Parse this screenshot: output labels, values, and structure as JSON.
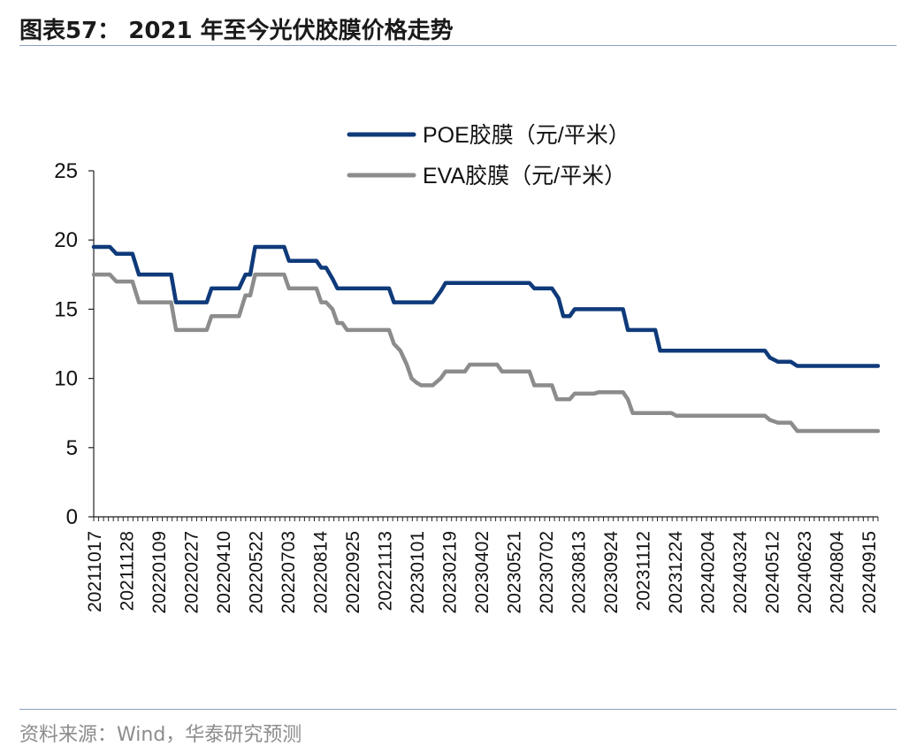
{
  "header": {
    "title": "图表57： 2021 年至今光伏胶膜价格走势"
  },
  "footer": {
    "source": "资料来源：Wind，华泰研究预测"
  },
  "chart_data": {
    "type": "line",
    "title": "",
    "xlabel": "",
    "ylabel": "",
    "ylim": [
      0,
      25
    ],
    "yticks": [
      0,
      5,
      10,
      15,
      20,
      25
    ],
    "x_tick_labels": [
      "20211017",
      "20211128",
      "20220109",
      "20220227",
      "20220410",
      "20220522",
      "20220703",
      "20220814",
      "20220925",
      "20221113",
      "20230101",
      "20230219",
      "20230402",
      "20230521",
      "20230702",
      "20230813",
      "20230924",
      "20231112",
      "20231224",
      "20240204",
      "20240324",
      "20240512",
      "20240623",
      "20240804",
      "20240915"
    ],
    "x_range": [
      0,
      24.3
    ],
    "legend_position": "top-right",
    "series": [
      {
        "name": "POE胶膜（元/平米）",
        "color": "#0f3a7a",
        "points": [
          [
            0,
            19.5
          ],
          [
            0.5,
            19.5
          ],
          [
            0.7,
            19.0
          ],
          [
            1.2,
            19.0
          ],
          [
            1.4,
            17.5
          ],
          [
            2.4,
            17.5
          ],
          [
            2.55,
            15.5
          ],
          [
            3.5,
            15.5
          ],
          [
            3.65,
            16.5
          ],
          [
            4.5,
            16.5
          ],
          [
            4.7,
            17.5
          ],
          [
            4.85,
            17.5
          ],
          [
            5.0,
            19.5
          ],
          [
            5.9,
            19.5
          ],
          [
            6.05,
            18.5
          ],
          [
            6.9,
            18.5
          ],
          [
            7.05,
            18.0
          ],
          [
            7.2,
            18.0
          ],
          [
            7.4,
            17.2
          ],
          [
            7.55,
            16.5
          ],
          [
            9.15,
            16.5
          ],
          [
            9.3,
            15.5
          ],
          [
            10.5,
            15.5
          ],
          [
            10.75,
            16.3
          ],
          [
            10.9,
            16.9
          ],
          [
            13.5,
            16.9
          ],
          [
            13.65,
            16.5
          ],
          [
            14.2,
            16.5
          ],
          [
            14.4,
            15.8
          ],
          [
            14.55,
            14.5
          ],
          [
            14.75,
            14.5
          ],
          [
            14.9,
            15.0
          ],
          [
            16.4,
            15.0
          ],
          [
            16.55,
            13.5
          ],
          [
            17.4,
            13.5
          ],
          [
            17.55,
            12.0
          ],
          [
            20.8,
            12.0
          ],
          [
            20.95,
            11.5
          ],
          [
            21.2,
            11.2
          ],
          [
            21.6,
            11.2
          ],
          [
            21.8,
            10.9
          ],
          [
            24.3,
            10.9
          ]
        ]
      },
      {
        "name": "EVA胶膜（元/平米）",
        "color": "#8c8c8c",
        "points": [
          [
            0,
            17.5
          ],
          [
            0.5,
            17.5
          ],
          [
            0.7,
            17.0
          ],
          [
            1.2,
            17.0
          ],
          [
            1.4,
            15.5
          ],
          [
            2.4,
            15.5
          ],
          [
            2.55,
            13.5
          ],
          [
            3.5,
            13.5
          ],
          [
            3.65,
            14.5
          ],
          [
            4.5,
            14.5
          ],
          [
            4.7,
            16.0
          ],
          [
            4.85,
            16.0
          ],
          [
            5.0,
            17.5
          ],
          [
            5.9,
            17.5
          ],
          [
            6.05,
            16.5
          ],
          [
            6.9,
            16.5
          ],
          [
            7.05,
            15.5
          ],
          [
            7.2,
            15.5
          ],
          [
            7.4,
            15.0
          ],
          [
            7.55,
            14.0
          ],
          [
            7.7,
            14.0
          ],
          [
            7.85,
            13.5
          ],
          [
            9.15,
            13.5
          ],
          [
            9.3,
            12.5
          ],
          [
            9.5,
            12.0
          ],
          [
            9.7,
            11.0
          ],
          [
            9.85,
            10.0
          ],
          [
            10.0,
            9.7
          ],
          [
            10.15,
            9.5
          ],
          [
            10.5,
            9.5
          ],
          [
            10.75,
            10.0
          ],
          [
            10.9,
            10.5
          ],
          [
            11.5,
            10.5
          ],
          [
            11.65,
            11.0
          ],
          [
            12.5,
            11.0
          ],
          [
            12.65,
            10.5
          ],
          [
            13.5,
            10.5
          ],
          [
            13.65,
            9.5
          ],
          [
            14.2,
            9.5
          ],
          [
            14.35,
            8.5
          ],
          [
            14.75,
            8.5
          ],
          [
            14.9,
            8.9
          ],
          [
            15.5,
            8.9
          ],
          [
            15.65,
            9.0
          ],
          [
            16.4,
            9.0
          ],
          [
            16.55,
            8.5
          ],
          [
            16.7,
            7.5
          ],
          [
            17.9,
            7.5
          ],
          [
            18.05,
            7.3
          ],
          [
            20.8,
            7.3
          ],
          [
            20.95,
            7.0
          ],
          [
            21.2,
            6.8
          ],
          [
            21.6,
            6.8
          ],
          [
            21.8,
            6.2
          ],
          [
            24.3,
            6.2
          ]
        ]
      }
    ]
  }
}
